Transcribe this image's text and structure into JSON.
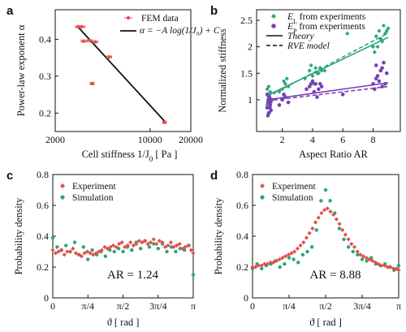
{
  "colors": {
    "red": "#e0504a",
    "green": "#2aa57f",
    "purple": "#7a3fb8",
    "black": "#111111"
  },
  "chart_data": [
    {
      "panel": "a",
      "type": "scatter",
      "xlabel": "Cell stiffness  1/J",
      "xlabel_sub": "0",
      "xlabel_unit": " [ Pa ]",
      "ylabel": "Power-law exponent    α",
      "xscale": "log",
      "xlim": [
        2000,
        20000
      ],
      "ylim": [
        0.15,
        0.48
      ],
      "xticks": [
        2000,
        10000,
        20000
      ],
      "xtick_labels": [
        "2000",
        "10000",
        "20000"
      ],
      "yticks": [
        0.2,
        0.3,
        0.4
      ],
      "ytick_labels": [
        "0.2",
        "0.3",
        "0.4"
      ],
      "legend": [
        {
          "label": "FEM data",
          "kind": "errpoint"
        },
        {
          "label": "α = −A log(1/J₀) + C",
          "kind": "line"
        }
      ],
      "points": {
        "x": [
          2950,
          3150,
          3250,
          3600,
          3750,
          3950,
          5000,
          12800
        ],
        "y": [
          0.434,
          0.434,
          0.395,
          0.396,
          0.28,
          0.393,
          0.352,
          0.175
        ],
        "xerr": [
          120,
          160,
          140,
          150,
          120,
          160,
          220,
          400
        ]
      },
      "fit_line": {
        "x": [
          2950,
          12800
        ],
        "y": [
          0.433,
          0.178
        ]
      }
    },
    {
      "panel": "b",
      "type": "scatter",
      "xlabel": "Aspect   Ratio   AR",
      "ylabel": "Normalized stiffness",
      "xlim": [
        0.3,
        9.8
      ],
      "ylim": [
        0.4,
        2.7
      ],
      "xticks": [
        2,
        4,
        6,
        8
      ],
      "xtick_labels": [
        "2",
        "4",
        "6",
        "8"
      ],
      "yticks": [
        1,
        1.5,
        2,
        2.5
      ],
      "ytick_labels": [
        "1",
        "1.5",
        "2",
        "2.5"
      ],
      "legend": [
        {
          "label": "E",
          "sub": "L",
          "suffix": " from experiments",
          "kind": "green-diamond"
        },
        {
          "label": "E",
          "sub": "P",
          "suffix": " from experiments",
          "kind": "purple-circle"
        },
        {
          "label": "Theory",
          "kind": "solid"
        },
        {
          "label": "RVE model",
          "kind": "dashed"
        }
      ],
      "series": [
        {
          "name": "E_L from experiments",
          "x": [
            1.0,
            1.05,
            1.1,
            1.15,
            1.2,
            1.25,
            1.0,
            1.1,
            1.2,
            1.3,
            1.05,
            1.15,
            1.8,
            2.0,
            2.2,
            2.4,
            2.1,
            2.3,
            3.5,
            3.8,
            4.0,
            4.2,
            4.4,
            4.6,
            3.9,
            4.1,
            4.3,
            4.5,
            4.8,
            6.3,
            8.0,
            8.2,
            8.4,
            8.6,
            8.8,
            9.0,
            8.1,
            8.3,
            8.5,
            8.7,
            8.9
          ],
          "y": [
            0.9,
            1.0,
            1.05,
            1.1,
            1.15,
            0.95,
            1.2,
            1.25,
            0.85,
            1.0,
            1.1,
            0.75,
            1.15,
            1.2,
            1.3,
            1.25,
            1.35,
            1.4,
            1.4,
            1.55,
            1.45,
            1.6,
            1.5,
            1.55,
            1.65,
            1.3,
            1.5,
            1.6,
            1.55,
            2.25,
            2.0,
            2.2,
            2.3,
            2.1,
            2.25,
            2.35,
            1.9,
            2.0,
            2.15,
            2.4,
            2.3
          ]
        },
        {
          "name": "E_P from experiments",
          "x": [
            1.0,
            1.05,
            1.1,
            1.15,
            1.2,
            1.25,
            1.0,
            1.1,
            1.2,
            1.3,
            1.05,
            1.15,
            1.8,
            2.0,
            2.2,
            2.4,
            2.1,
            3.6,
            3.8,
            4.0,
            4.2,
            4.4,
            4.6,
            3.9,
            4.1,
            4.3,
            4.5,
            6.0,
            8.0,
            8.2,
            8.4,
            8.6,
            8.8,
            8.1,
            8.3,
            8.5,
            8.7,
            8.9,
            8.2,
            8.6
          ],
          "y": [
            0.85,
            0.95,
            1.0,
            1.05,
            0.9,
            0.8,
            1.1,
            0.75,
            0.95,
            1.0,
            0.7,
            0.85,
            0.9,
            1.0,
            1.05,
            0.95,
            1.1,
            1.2,
            1.25,
            1.35,
            1.3,
            1.2,
            1.25,
            1.3,
            1.15,
            1.05,
            1.3,
            1.1,
            1.3,
            1.4,
            1.35,
            1.25,
            1.3,
            1.2,
            1.45,
            1.55,
            1.7,
            1.5,
            1.65,
            1.6
          ]
        }
      ],
      "lines": [
        {
          "name": "Theory E_L",
          "style": "solid",
          "color": "#2aa57f",
          "x": [
            1.0,
            9.0
          ],
          "y": [
            1.08,
            2.18
          ]
        },
        {
          "name": "RVE E_L",
          "style": "dashed",
          "color": "#2aa57f",
          "x": [
            1.0,
            9.0
          ],
          "y": [
            1.05,
            2.26
          ]
        },
        {
          "name": "Theory E_P",
          "style": "solid",
          "color": "#7a3fb8",
          "x": [
            1.0,
            9.0
          ],
          "y": [
            1.0,
            1.32
          ]
        },
        {
          "name": "RVE E_P",
          "style": "dashed",
          "color": "#7a3fb8",
          "x": [
            1.0,
            9.0
          ],
          "y": [
            0.98,
            1.25
          ]
        }
      ]
    },
    {
      "panel": "c",
      "type": "scatter",
      "xlabel": "ϑ   [ rad ]",
      "ylabel": "Probability density",
      "annotation": "AR = 1.24",
      "xlim": [
        0,
        3.1416
      ],
      "ylim": [
        0,
        0.8
      ],
      "xticks": [
        0,
        0.7854,
        1.5708,
        2.3562,
        3.1416
      ],
      "xtick_labels": [
        "0",
        "π/4",
        "π/2",
        "3π/4",
        "π"
      ],
      "yticks": [
        0,
        0.2,
        0.4,
        0.6,
        0.8
      ],
      "ytick_labels": [
        "0",
        "0.2",
        "0.4",
        "0.6",
        "0.8"
      ],
      "legend": [
        {
          "label": "Experiment",
          "kind": "red-diamond"
        },
        {
          "label": "Simulation",
          "kind": "green-circle"
        }
      ],
      "series": [
        {
          "name": "Experiment",
          "x": [
            0.0,
            0.0644,
            0.1289,
            0.1933,
            0.2577,
            0.3222,
            0.3866,
            0.451,
            0.5155,
            0.5799,
            0.6443,
            0.7088,
            0.7732,
            0.8376,
            0.9021,
            0.9665,
            1.0309,
            1.0954,
            1.1598,
            1.2242,
            1.2887,
            1.3531,
            1.4175,
            1.482,
            1.5464,
            1.6108,
            1.6753,
            1.7397,
            1.8041,
            1.8686,
            1.933,
            1.9974,
            2.0619,
            2.1263,
            2.1907,
            2.2552,
            2.3196,
            2.384,
            2.4485,
            2.5129,
            2.5773,
            2.6418,
            2.7062,
            2.7706,
            2.8351,
            2.8995,
            2.9639,
            3.0284,
            3.0928,
            3.1416
          ],
          "y": [
            0.31,
            0.29,
            0.3,
            0.31,
            0.28,
            0.3,
            0.3,
            0.32,
            0.29,
            0.28,
            0.27,
            0.29,
            0.3,
            0.29,
            0.28,
            0.29,
            0.3,
            0.31,
            0.33,
            0.32,
            0.33,
            0.34,
            0.33,
            0.35,
            0.36,
            0.33,
            0.34,
            0.36,
            0.34,
            0.35,
            0.37,
            0.36,
            0.37,
            0.35,
            0.36,
            0.38,
            0.35,
            0.37,
            0.36,
            0.33,
            0.34,
            0.36,
            0.33,
            0.34,
            0.35,
            0.32,
            0.33,
            0.34,
            0.31,
            0.29
          ]
        },
        {
          "name": "Simulation",
          "x": [
            0.0,
            0.0982,
            0.1963,
            0.2945,
            0.3927,
            0.4909,
            0.589,
            0.6872,
            0.7854,
            0.8836,
            0.9817,
            1.0799,
            1.1781,
            1.2763,
            1.3744,
            1.4726,
            1.5708,
            1.669,
            1.7671,
            1.8653,
            1.9635,
            2.0617,
            2.1598,
            2.258,
            2.3562,
            2.4544,
            2.5525,
            2.6507,
            2.7489,
            2.8471,
            2.9452,
            3.0434,
            3.1416
          ],
          "y": [
            0.39,
            0.33,
            0.31,
            0.34,
            0.3,
            0.36,
            0.28,
            0.33,
            0.25,
            0.31,
            0.28,
            0.3,
            0.27,
            0.31,
            0.3,
            0.32,
            0.3,
            0.33,
            0.31,
            0.36,
            0.32,
            0.37,
            0.33,
            0.35,
            0.32,
            0.35,
            0.3,
            0.33,
            0.3,
            0.32,
            0.31,
            0.34,
            0.15
          ]
        }
      ]
    },
    {
      "panel": "d",
      "type": "scatter",
      "xlabel": "ϑ   [ rad ]",
      "ylabel": "Probability density",
      "annotation": "AR = 8.88",
      "xlim": [
        0,
        3.1416
      ],
      "ylim": [
        0,
        0.8
      ],
      "xticks": [
        0,
        0.7854,
        1.5708,
        2.3562,
        3.1416
      ],
      "xtick_labels": [
        "0",
        "π/4",
        "π/2",
        "3π/4",
        "π"
      ],
      "yticks": [
        0,
        0.2,
        0.4,
        0.6,
        0.8
      ],
      "ytick_labels": [
        "0",
        "0.2",
        "0.4",
        "0.6",
        "0.8"
      ],
      "legend": [
        {
          "label": "Experiment",
          "kind": "red-diamond"
        },
        {
          "label": "Simulation",
          "kind": "green-circle"
        }
      ],
      "series": [
        {
          "name": "Experiment",
          "x": [
            0.0,
            0.0644,
            0.1289,
            0.1933,
            0.2577,
            0.3222,
            0.3866,
            0.451,
            0.5155,
            0.5799,
            0.6443,
            0.7088,
            0.7732,
            0.8376,
            0.9021,
            0.9665,
            1.0309,
            1.0954,
            1.1598,
            1.2242,
            1.2887,
            1.3531,
            1.4175,
            1.482,
            1.5464,
            1.6108,
            1.6753,
            1.7397,
            1.8041,
            1.8686,
            1.933,
            1.9974,
            2.0619,
            2.1263,
            2.1907,
            2.2552,
            2.3196,
            2.384,
            2.4485,
            2.5129,
            2.5773,
            2.6418,
            2.7062,
            2.7706,
            2.8351,
            2.8995,
            2.9639,
            3.0284,
            3.0928,
            3.1416
          ],
          "y": [
            0.2,
            0.2,
            0.21,
            0.21,
            0.22,
            0.22,
            0.23,
            0.23,
            0.24,
            0.25,
            0.26,
            0.27,
            0.28,
            0.29,
            0.3,
            0.32,
            0.34,
            0.36,
            0.39,
            0.42,
            0.45,
            0.49,
            0.52,
            0.55,
            0.57,
            0.58,
            0.56,
            0.54,
            0.51,
            0.48,
            0.44,
            0.41,
            0.38,
            0.35,
            0.33,
            0.3,
            0.28,
            0.27,
            0.26,
            0.25,
            0.24,
            0.23,
            0.22,
            0.21,
            0.21,
            0.2,
            0.2,
            0.19,
            0.19,
            0.18
          ]
        },
        {
          "name": "Simulation",
          "x": [
            0.0,
            0.0982,
            0.1963,
            0.2945,
            0.3927,
            0.4909,
            0.589,
            0.6872,
            0.7854,
            0.8836,
            0.9817,
            1.0799,
            1.1781,
            1.2763,
            1.3744,
            1.4726,
            1.5708,
            1.669,
            1.7671,
            1.8653,
            1.9635,
            2.0617,
            2.1598,
            2.258,
            2.3562,
            2.4544,
            2.5525,
            2.6507,
            2.7489,
            2.8471,
            2.9452,
            3.0434,
            3.1416
          ],
          "y": [
            0.19,
            0.22,
            0.19,
            0.21,
            0.22,
            0.24,
            0.2,
            0.22,
            0.26,
            0.25,
            0.23,
            0.28,
            0.3,
            0.33,
            0.44,
            0.63,
            0.7,
            0.63,
            0.55,
            0.45,
            0.38,
            0.33,
            0.3,
            0.28,
            0.25,
            0.24,
            0.26,
            0.22,
            0.21,
            0.22,
            0.2,
            0.18,
            0.21
          ]
        }
      ]
    }
  ]
}
